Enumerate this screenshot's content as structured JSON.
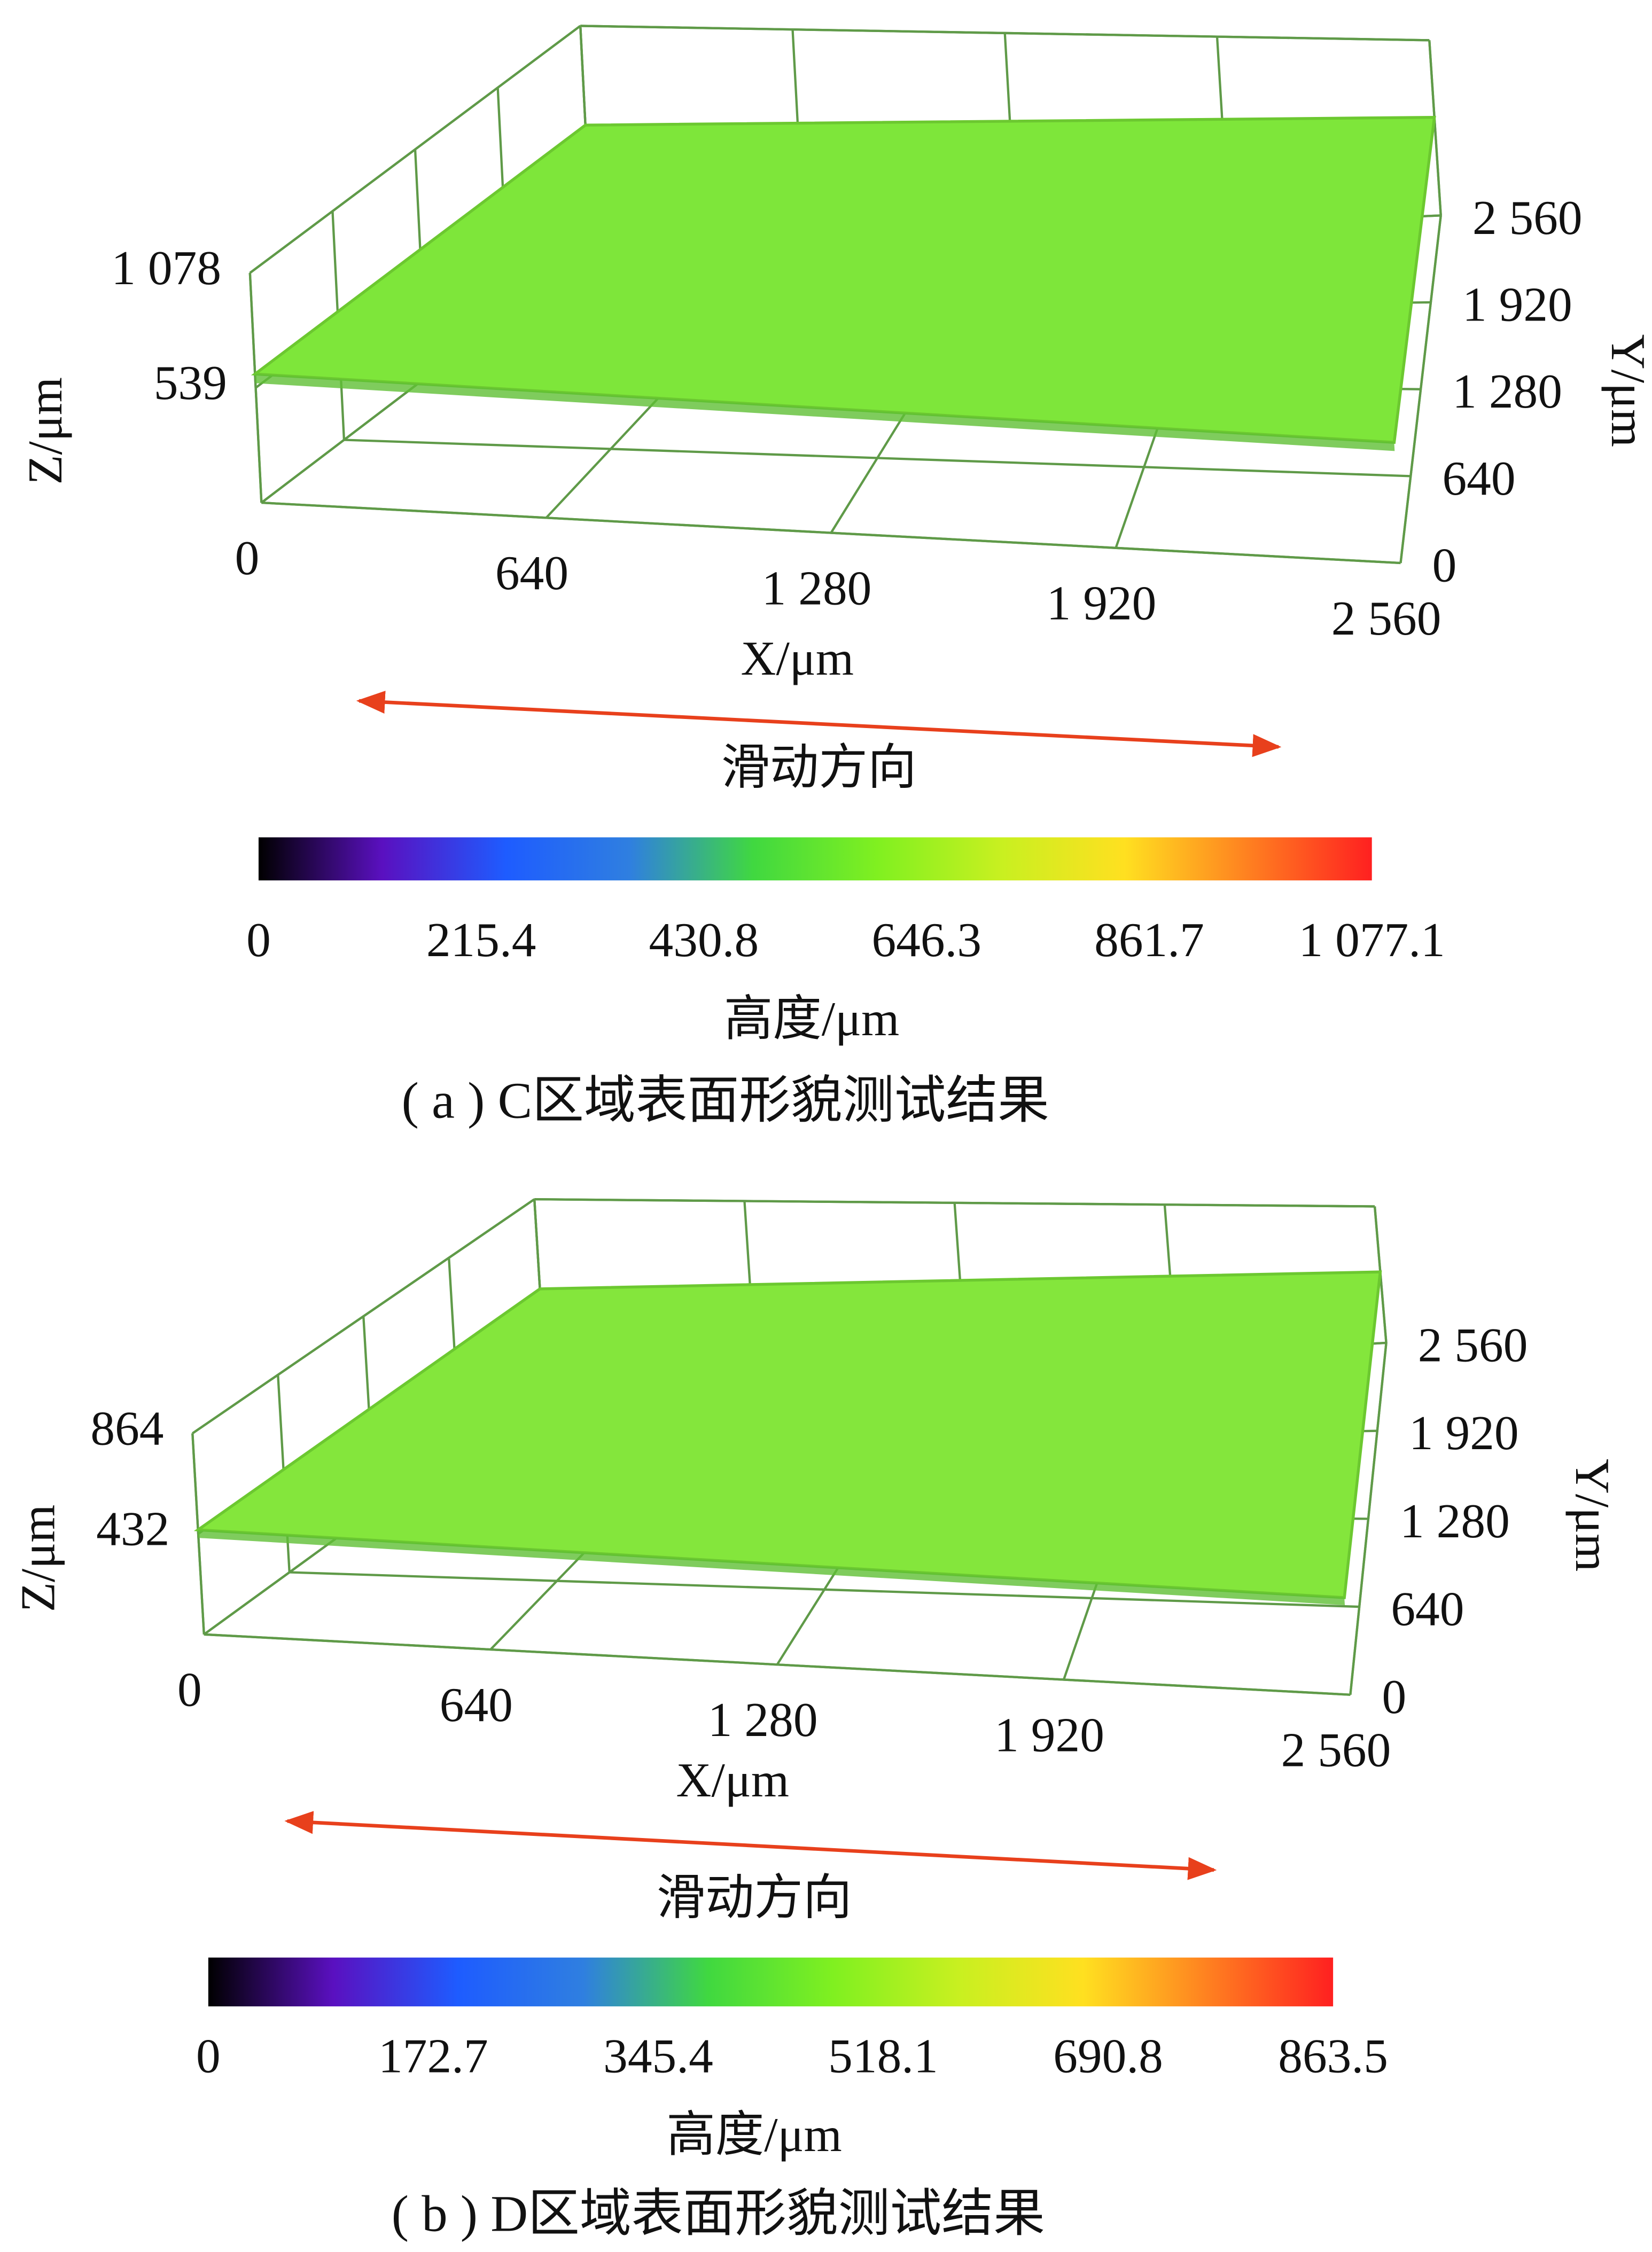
{
  "chart_data": [
    {
      "type": "surface",
      "xlabel": "X/μm",
      "ylabel": "Y/μm",
      "zlabel": "Z/μm",
      "xlim": [
        0,
        2560
      ],
      "ylim": [
        0,
        2560
      ],
      "zlim": [
        0,
        1078
      ],
      "xticks": [
        0,
        640,
        {
          "value": 1280,
          "label": "1 280"
        },
        {
          "value": 1920,
          "label": "1 920"
        },
        {
          "value": 2560,
          "label": "2 560"
        }
      ],
      "yticks": [
        0,
        640,
        {
          "value": 1280,
          "label": "1 280"
        },
        {
          "value": 1920,
          "label": "1 920"
        },
        {
          "value": 2560,
          "label": "2 560"
        }
      ],
      "zticks": [
        539,
        {
          "value": 1078,
          "label": "1 078"
        }
      ],
      "surface_color": "#7ee63a",
      "annotation": "滑动方向",
      "colorbar": {
        "label": "高度/μm",
        "lim": [
          0,
          1077.1
        ],
        "ticks": [
          0,
          215.4,
          430.8,
          646.3,
          861.7,
          {
            "value": 1077.1,
            "label": "1 077.1"
          }
        ],
        "colors": [
          "#000000",
          "#5a10c0",
          "#1e5cff",
          "#2f7fe0",
          "#40d840",
          "#80f020",
          "#c8f020",
          "#ffe020",
          "#ff8020",
          "#ff2020"
        ]
      },
      "caption": "( a ) C区域表面形貌测试结果"
    },
    {
      "type": "surface",
      "xlabel": "X/μm",
      "ylabel": "Y/μm",
      "zlabel": "Z/μm",
      "xlim": [
        0,
        2560
      ],
      "ylim": [
        0,
        2560
      ],
      "zlim": [
        0,
        864
      ],
      "xticks": [
        0,
        640,
        {
          "value": 1280,
          "label": "1 280"
        },
        {
          "value": 1920,
          "label": "1 920"
        },
        {
          "value": 2560,
          "label": "2 560"
        }
      ],
      "yticks": [
        0,
        640,
        {
          "value": 1280,
          "label": "1 280"
        },
        {
          "value": 1920,
          "label": "1 920"
        },
        {
          "value": 2560,
          "label": "2 560"
        }
      ],
      "zticks": [
        432,
        864
      ],
      "surface_color": "#84e63c",
      "annotation": "滑动方向",
      "colorbar": {
        "label": "高度/μm",
        "lim": [
          0,
          863.5
        ],
        "ticks": [
          0,
          172.7,
          345.4,
          518.1,
          690.8,
          863.5
        ],
        "colors": [
          "#000000",
          "#5a10c0",
          "#1e5cff",
          "#2f7fe0",
          "#40d840",
          "#80f020",
          "#c8f020",
          "#ffe020",
          "#ff8020",
          "#ff2020"
        ]
      },
      "caption": "( b ) D区域表面形貌测试结果"
    }
  ]
}
